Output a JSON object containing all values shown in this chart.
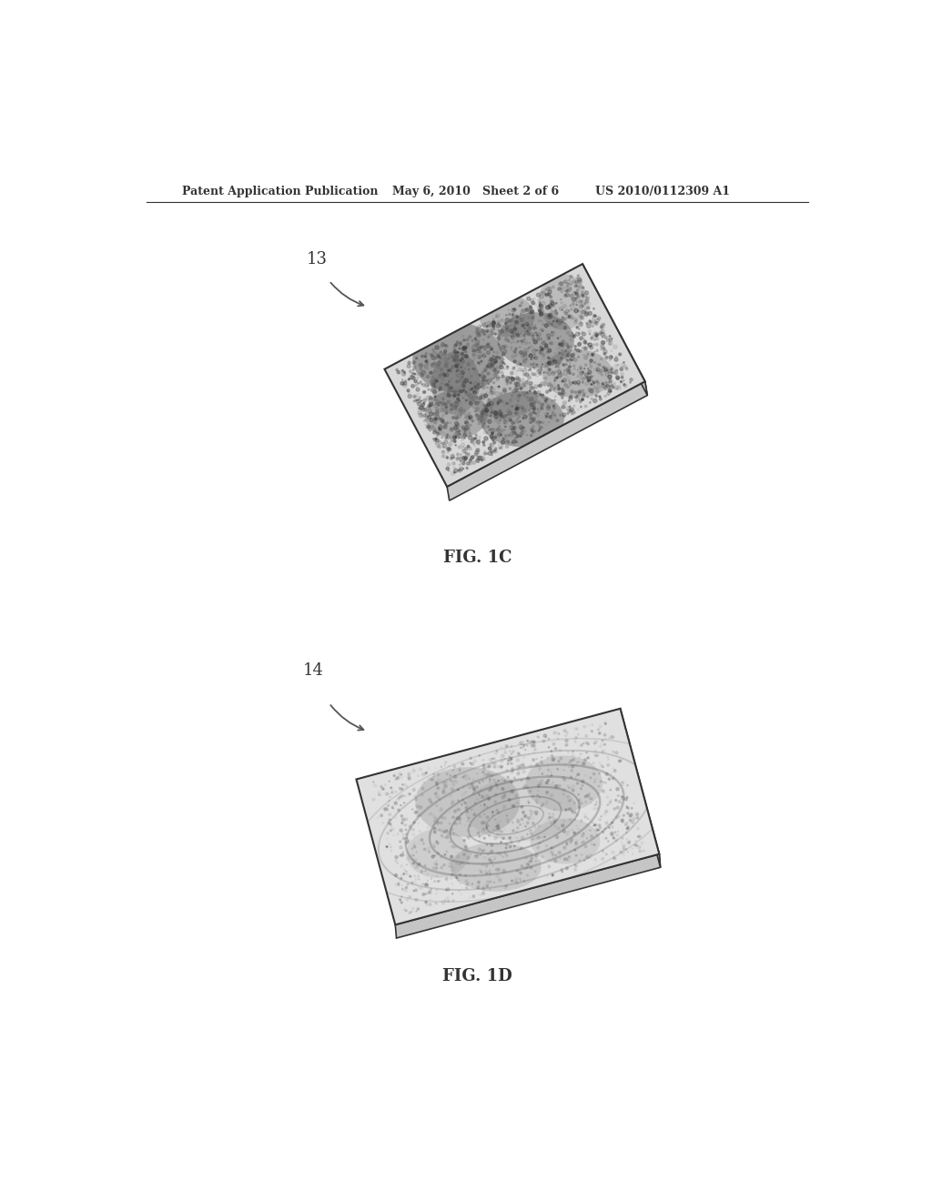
{
  "header_left": "Patent Application Publication",
  "header_mid": "May 6, 2010   Sheet 2 of 6",
  "header_right": "US 2010/0112309 A1",
  "fig1_label": "13",
  "fig1_caption": "FIG. 1C",
  "fig2_label": "14",
  "fig2_caption": "FIG. 1D",
  "bg_color": "#ffffff",
  "line_color": "#333333",
  "text_color": "#333333",
  "header_font_size": 9,
  "caption_font_size": 13,
  "label_font_size": 13
}
